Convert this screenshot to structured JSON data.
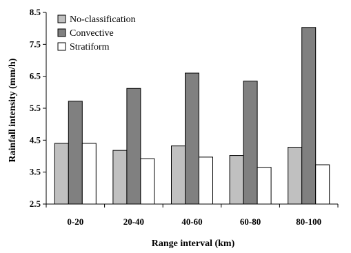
{
  "chart_data": {
    "type": "bar",
    "categories": [
      "0-20",
      "20-40",
      "40-60",
      "60-80",
      "80-100"
    ],
    "series": [
      {
        "name": "No-classification",
        "color": "#c0c0c0",
        "values": [
          4.4,
          4.18,
          4.32,
          4.02,
          4.28
        ]
      },
      {
        "name": "Convective",
        "color": "#808080",
        "values": [
          5.72,
          6.12,
          6.6,
          6.35,
          8.03
        ]
      },
      {
        "name": "Stratiform",
        "color": "#ffffff",
        "values": [
          4.4,
          3.92,
          3.97,
          3.65,
          3.73
        ]
      }
    ],
    "xlabel": "Range interval (km)",
    "ylabel": "Rainfall intensity (mm/h)",
    "ylim": [
      2.5,
      8.5
    ],
    "yticks": [
      "2.5",
      "3.5",
      "4.5",
      "5.5",
      "6.5",
      "7.5",
      "8.5"
    ],
    "grid": false,
    "legend_position": "top-left"
  }
}
